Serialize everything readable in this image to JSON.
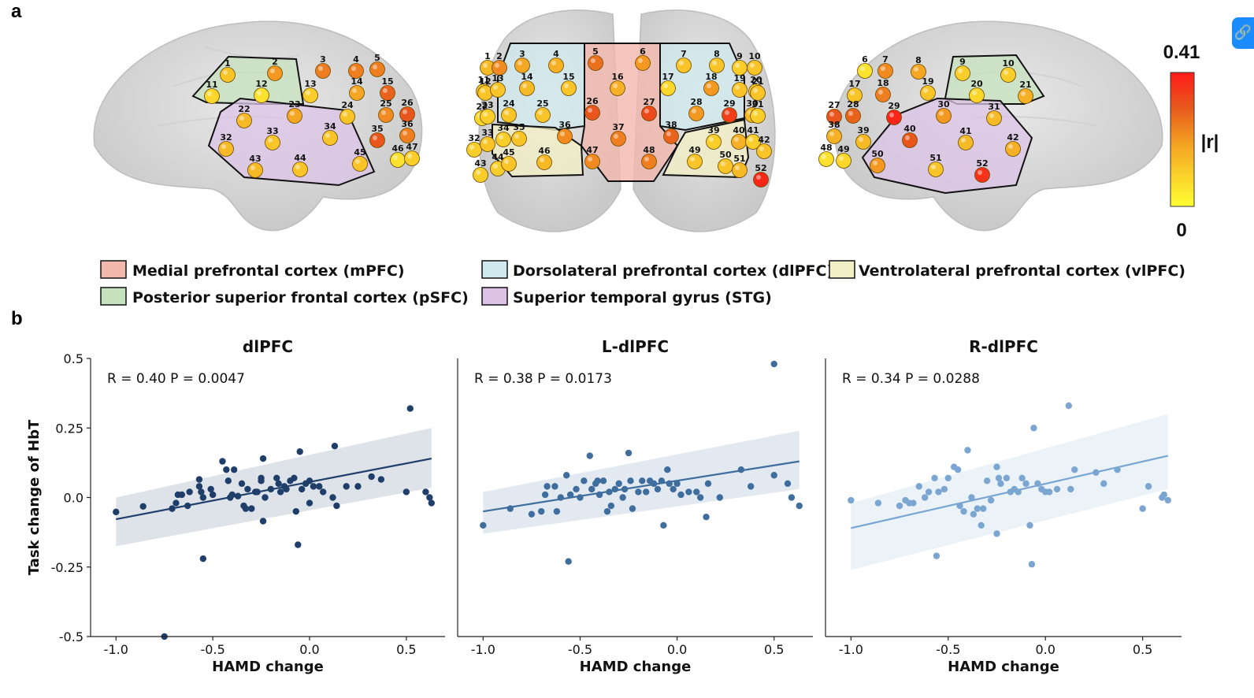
{
  "panel_a": {
    "label": "a",
    "colorbar": {
      "max_label": "0.41",
      "min_label": "0",
      "title": "|r|",
      "colors": [
        "#ffff33",
        "#f5a623",
        "#e8561c",
        "#ff1a1a"
      ]
    },
    "regions": {
      "mPFC": {
        "label": "Medial prefrontal cortex (mPFC)",
        "color": "#f2b8ac"
      },
      "dlPFC": {
        "label": "Dorsolateral prefrontal cortex (dlPFC)",
        "color": "#cfe9ef"
      },
      "vlPFC": {
        "label": "Ventrolateral prefrontal cortex (vlPFC)",
        "color": "#f3efc6"
      },
      "pSFC": {
        "label": "Posterior superior frontal cortex (pSFC)",
        "color": "#c5e2bd"
      },
      "STG": {
        "label": "Superior temporal gyrus (STG)",
        "color": "#dcc3e6"
      }
    },
    "left_view_channels": [
      "1",
      "2",
      "3",
      "4",
      "5",
      "11",
      "12",
      "13",
      "14",
      "15",
      "22",
      "23",
      "24",
      "25",
      "26",
      "32",
      "33",
      "34",
      "35",
      "36",
      "43",
      "44",
      "45",
      "46",
      "47"
    ],
    "front_view_channels": [
      "1",
      "2",
      "3",
      "4",
      "5",
      "6",
      "7",
      "8",
      "9",
      "10",
      "11",
      "12",
      "13",
      "14",
      "15",
      "16",
      "17",
      "18",
      "19",
      "20",
      "21",
      "22",
      "23",
      "24",
      "25",
      "26",
      "27",
      "28",
      "29",
      "30",
      "31",
      "32",
      "33",
      "34",
      "35",
      "36",
      "37",
      "38",
      "39",
      "40",
      "41",
      "42",
      "43",
      "44",
      "45",
      "46",
      "47",
      "48",
      "49",
      "50",
      "51",
      "52"
    ],
    "right_view_channels": [
      "6",
      "7",
      "8",
      "9",
      "10",
      "17",
      "18",
      "19",
      "20",
      "21",
      "27",
      "28",
      "29",
      "30",
      "31",
      "38",
      "39",
      "40",
      "41",
      "42",
      "48",
      "49",
      "50",
      "51",
      "52"
    ]
  },
  "panel_b": {
    "label": "b"
  },
  "chart_data": [
    {
      "type": "scatter",
      "title": "dlPFC",
      "annotation": "R = 0.40 P = 0.0047",
      "xlabel": "HAMD change",
      "ylabel": "Task change of HbT",
      "xlim": [
        -1.05,
        0.7
      ],
      "ylim": [
        -0.5,
        0.5
      ],
      "xticks": [
        "-1.0",
        "-0.5",
        "0.0",
        "0.5"
      ],
      "yticks": [
        "0.5",
        "0.25",
        "0.0",
        "-0.25",
        "-0.5"
      ],
      "color": "#1f3f6a",
      "fit_line": {
        "x": [
          -1.0,
          0.63
        ],
        "y": [
          -0.078,
          0.14
        ]
      },
      "ci_band": {
        "x": [
          -1.0,
          0.63
        ],
        "upper": [
          0.0,
          0.25
        ],
        "lower": [
          -0.175,
          0.035
        ]
      },
      "points": [
        [
          -1.0,
          -0.052
        ],
        [
          -0.86,
          -0.032
        ],
        [
          -0.75,
          -0.5
        ],
        [
          -0.71,
          -0.04
        ],
        [
          -0.69,
          -0.02
        ],
        [
          -0.68,
          0.01
        ],
        [
          -0.66,
          0.01
        ],
        [
          -0.63,
          -0.03
        ],
        [
          -0.62,
          0.02
        ],
        [
          -0.57,
          0.065
        ],
        [
          -0.57,
          0.04
        ],
        [
          -0.56,
          0.02
        ],
        [
          -0.55,
          -0.22
        ],
        [
          -0.55,
          0.0
        ],
        [
          -0.51,
          0.03
        ],
        [
          -0.5,
          0.01
        ],
        [
          -0.45,
          0.13
        ],
        [
          -0.43,
          0.1
        ],
        [
          -0.42,
          0.06
        ],
        [
          -0.41,
          0.0
        ],
        [
          -0.4,
          0.01
        ],
        [
          -0.39,
          0.1
        ],
        [
          -0.37,
          0.005
        ],
        [
          -0.35,
          0.05
        ],
        [
          -0.34,
          -0.03
        ],
        [
          -0.33,
          -0.04
        ],
        [
          -0.32,
          0.03
        ],
        [
          -0.3,
          -0.04
        ],
        [
          -0.28,
          0.02
        ],
        [
          -0.27,
          0.02
        ],
        [
          -0.25,
          0.07
        ],
        [
          -0.25,
          0.06
        ],
        [
          -0.24,
          0.14
        ],
        [
          -0.24,
          -0.085
        ],
        [
          -0.23,
          0.0
        ],
        [
          -0.2,
          0.03
        ],
        [
          -0.17,
          0.07
        ],
        [
          -0.16,
          0.05
        ],
        [
          -0.15,
          0.02
        ],
        [
          -0.13,
          0.04
        ],
        [
          -0.12,
          0.03
        ],
        [
          -0.1,
          0.06
        ],
        [
          -0.08,
          0.07
        ],
        [
          -0.07,
          -0.05
        ],
        [
          -0.06,
          -0.17
        ],
        [
          -0.05,
          0.165
        ],
        [
          -0.04,
          0.03
        ],
        [
          -0.02,
          0.05
        ],
        [
          0.0,
          0.06
        ],
        [
          0.0,
          -0.02
        ],
        [
          0.02,
          0.04
        ],
        [
          0.05,
          0.04
        ],
        [
          0.07,
          0.02
        ],
        [
          0.12,
          0.0
        ],
        [
          0.13,
          0.185
        ],
        [
          0.14,
          -0.03
        ],
        [
          0.19,
          0.04
        ],
        [
          0.25,
          0.04
        ],
        [
          0.32,
          0.075
        ],
        [
          0.37,
          0.065
        ],
        [
          0.5,
          0.02
        ],
        [
          0.52,
          0.32
        ],
        [
          0.6,
          0.02
        ],
        [
          0.62,
          0.0
        ],
        [
          0.63,
          -0.02
        ]
      ]
    },
    {
      "type": "scatter",
      "title": "L-dlPFC",
      "annotation": "R = 0.38 P = 0.0173",
      "xlabel": "HAMD change",
      "ylabel": "",
      "xlim": [
        -1.05,
        0.7
      ],
      "ylim": [
        -0.5,
        0.5
      ],
      "xticks": [
        "-1.0",
        "-0.5",
        "0.0",
        "0.5"
      ],
      "yticks": [],
      "color": "#3f6e9e",
      "fit_line": {
        "x": [
          -1.0,
          0.63
        ],
        "y": [
          -0.05,
          0.13
        ]
      },
      "ci_band": {
        "x": [
          -1.0,
          0.63
        ],
        "upper": [
          0.02,
          0.24
        ],
        "lower": [
          -0.13,
          0.03
        ]
      },
      "points": [
        [
          -1.0,
          -0.1
        ],
        [
          -0.86,
          -0.04
        ],
        [
          -0.75,
          -0.06
        ],
        [
          -0.7,
          -0.05
        ],
        [
          -0.68,
          0.01
        ],
        [
          -0.67,
          0.04
        ],
        [
          -0.63,
          0.04
        ],
        [
          -0.62,
          -0.05
        ],
        [
          -0.6,
          0.0
        ],
        [
          -0.57,
          0.08
        ],
        [
          -0.56,
          -0.23
        ],
        [
          -0.55,
          0.01
        ],
        [
          -0.52,
          0.03
        ],
        [
          -0.5,
          0.0
        ],
        [
          -0.48,
          0.06
        ],
        [
          -0.45,
          0.15
        ],
        [
          -0.44,
          0.03
        ],
        [
          -0.42,
          0.05
        ],
        [
          -0.41,
          0.06
        ],
        [
          -0.4,
          0.01
        ],
        [
          -0.38,
          0.06
        ],
        [
          -0.36,
          -0.05
        ],
        [
          -0.35,
          0.02
        ],
        [
          -0.34,
          -0.03
        ],
        [
          -0.32,
          0.03
        ],
        [
          -0.3,
          0.05
        ],
        [
          -0.28,
          0.0
        ],
        [
          -0.27,
          0.03
        ],
        [
          -0.25,
          0.16
        ],
        [
          -0.24,
          0.06
        ],
        [
          -0.23,
          -0.04
        ],
        [
          -0.2,
          0.02
        ],
        [
          -0.18,
          0.06
        ],
        [
          -0.16,
          0.02
        ],
        [
          -0.14,
          0.06
        ],
        [
          -0.12,
          0.05
        ],
        [
          -0.1,
          0.03
        ],
        [
          -0.08,
          0.06
        ],
        [
          -0.07,
          -0.1
        ],
        [
          -0.05,
          0.1
        ],
        [
          -0.04,
          0.05
        ],
        [
          -0.02,
          0.03
        ],
        [
          0.0,
          0.05
        ],
        [
          0.02,
          0.01
        ],
        [
          0.06,
          0.02
        ],
        [
          0.1,
          0.02
        ],
        [
          0.12,
          0.0
        ],
        [
          0.15,
          -0.07
        ],
        [
          0.16,
          0.05
        ],
        [
          0.22,
          0.0
        ],
        [
          0.33,
          0.1
        ],
        [
          0.38,
          0.04
        ],
        [
          0.5,
          0.48
        ],
        [
          0.5,
          0.08
        ],
        [
          0.57,
          0.05
        ],
        [
          0.59,
          0.0
        ],
        [
          0.63,
          -0.03
        ]
      ]
    },
    {
      "type": "scatter",
      "title": "R-dlPFC",
      "annotation": "R = 0.34 P = 0.0288",
      "xlabel": "HAMD change",
      "ylabel": "",
      "xlim": [
        -1.05,
        0.7
      ],
      "ylim": [
        -0.5,
        0.5
      ],
      "xticks": [
        "-1.0",
        "-0.5",
        "0.0",
        "0.5"
      ],
      "yticks": [],
      "color": "#7ba6d2",
      "fit_line": {
        "x": [
          -1.0,
          0.63
        ],
        "y": [
          -0.11,
          0.15
        ]
      },
      "ci_band": {
        "x": [
          -1.0,
          0.63
        ],
        "upper": [
          -0.02,
          0.3
        ],
        "lower": [
          -0.26,
          0.03
        ]
      },
      "points": [
        [
          -1.0,
          -0.01
        ],
        [
          -0.86,
          -0.02
        ],
        [
          -0.75,
          -0.03
        ],
        [
          -0.72,
          -0.01
        ],
        [
          -0.7,
          -0.02
        ],
        [
          -0.68,
          -0.02
        ],
        [
          -0.65,
          0.04
        ],
        [
          -0.62,
          0.0
        ],
        [
          -0.6,
          0.02
        ],
        [
          -0.57,
          0.07
        ],
        [
          -0.56,
          -0.21
        ],
        [
          -0.55,
          0.02
        ],
        [
          -0.52,
          0.03
        ],
        [
          -0.5,
          0.07
        ],
        [
          -0.47,
          0.11
        ],
        [
          -0.45,
          0.1
        ],
        [
          -0.44,
          -0.03
        ],
        [
          -0.42,
          -0.05
        ],
        [
          -0.4,
          0.17
        ],
        [
          -0.38,
          0.0
        ],
        [
          -0.37,
          -0.06
        ],
        [
          -0.35,
          -0.04
        ],
        [
          -0.33,
          -0.1
        ],
        [
          -0.32,
          -0.04
        ],
        [
          -0.3,
          0.06
        ],
        [
          -0.28,
          -0.01
        ],
        [
          -0.25,
          -0.13
        ],
        [
          -0.25,
          0.11
        ],
        [
          -0.24,
          0.07
        ],
        [
          -0.23,
          0.05
        ],
        [
          -0.2,
          0.07
        ],
        [
          -0.18,
          0.02
        ],
        [
          -0.16,
          0.03
        ],
        [
          -0.14,
          0.02
        ],
        [
          -0.12,
          0.07
        ],
        [
          -0.1,
          0.05
        ],
        [
          -0.08,
          -0.1
        ],
        [
          -0.07,
          -0.24
        ],
        [
          -0.06,
          0.25
        ],
        [
          -0.04,
          0.05
        ],
        [
          -0.02,
          0.03
        ],
        [
          0.0,
          0.02
        ],
        [
          0.02,
          0.02
        ],
        [
          0.06,
          0.03
        ],
        [
          0.12,
          0.33
        ],
        [
          0.13,
          0.03
        ],
        [
          0.15,
          0.1
        ],
        [
          0.26,
          0.09
        ],
        [
          0.3,
          0.05
        ],
        [
          0.37,
          0.1
        ],
        [
          0.5,
          -0.04
        ],
        [
          0.53,
          0.04
        ],
        [
          0.6,
          0.0
        ],
        [
          0.61,
          0.01
        ],
        [
          0.63,
          -0.01
        ]
      ]
    }
  ]
}
